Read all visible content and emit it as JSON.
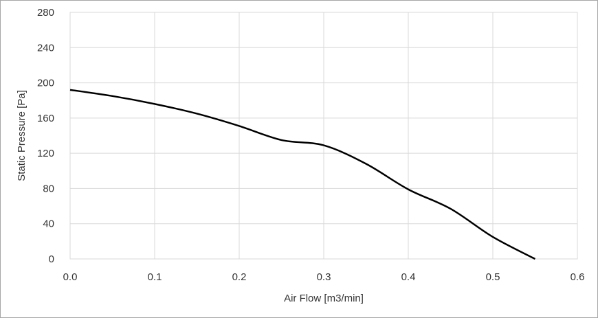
{
  "chart_data": {
    "type": "line",
    "xlabel": "Air Flow [m3/min]",
    "ylabel": "Static Pressure [Pa]",
    "xlim": [
      0,
      0.6
    ],
    "ylim": [
      0,
      280
    ],
    "x_ticks": [
      "0.0",
      "0.1",
      "0.2",
      "0.3",
      "0.4",
      "0.5",
      "0.6"
    ],
    "y_ticks": [
      "0",
      "40",
      "80",
      "120",
      "160",
      "200",
      "240",
      "280"
    ],
    "grid": true,
    "legend": "none",
    "line_color": "#000000",
    "grid_color": "#d9d9d9",
    "series": [
      {
        "x": [
          0.0,
          0.05,
          0.1,
          0.15,
          0.2,
          0.25,
          0.3,
          0.35,
          0.4,
          0.45,
          0.5,
          0.55
        ],
        "y": [
          192,
          185,
          176,
          165,
          151,
          135,
          129,
          108,
          79,
          57,
          25,
          0
        ]
      }
    ]
  }
}
